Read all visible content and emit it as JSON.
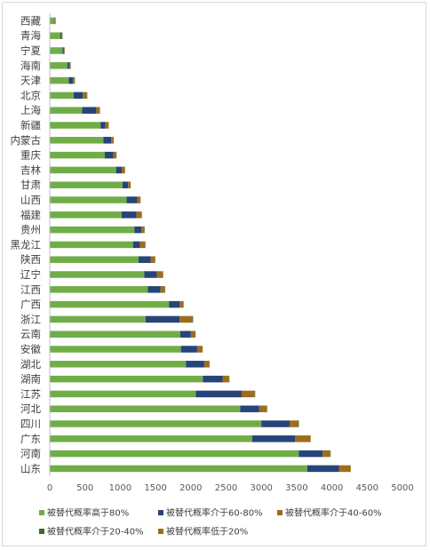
{
  "chart_data": {
    "type": "bar",
    "orientation": "horizontal",
    "stacked": true,
    "categories": [
      "西藏",
      "青海",
      "宁夏",
      "海南",
      "天津",
      "北京",
      "上海",
      "新疆",
      "内蒙古",
      "重庆",
      "吉林",
      "甘肃",
      "山西",
      "福建",
      "贵州",
      "黑龙江",
      "陕西",
      "辽宁",
      "江西",
      "广西",
      "浙江",
      "云南",
      "安徽",
      "湖北",
      "湖南",
      "江苏",
      "河北",
      "四川",
      "广东",
      "河南",
      "山东"
    ],
    "series": [
      {
        "name": "被替代概率高于80%",
        "color": "#70ad47",
        "values": [
          70,
          150,
          180,
          250,
          270,
          340,
          460,
          720,
          760,
          780,
          940,
          1030,
          1090,
          1020,
          1200,
          1180,
          1260,
          1340,
          1390,
          1690,
          1360,
          1850,
          1860,
          1930,
          2170,
          2070,
          2700,
          3000,
          2870,
          3530,
          3650
        ]
      },
      {
        "name": "被替代概率介于60-80%",
        "color": "#264478",
        "values": [
          5,
          15,
          15,
          25,
          60,
          130,
          200,
          70,
          110,
          120,
          80,
          80,
          150,
          210,
          100,
          100,
          170,
          180,
          180,
          150,
          480,
          150,
          230,
          260,
          280,
          650,
          270,
          400,
          610,
          340,
          450
        ]
      },
      {
        "name": "被替代概率介于40-60%",
        "color": "#9e6c1f",
        "values": [
          5,
          10,
          10,
          15,
          20,
          50,
          40,
          40,
          30,
          40,
          40,
          30,
          40,
          70,
          40,
          70,
          60,
          80,
          60,
          50,
          180,
          60,
          70,
          70,
          90,
          180,
          100,
          120,
          200,
          100,
          150
        ]
      },
      {
        "name": "被替代概率介于20-40%",
        "color": "#43682b",
        "values": [
          3,
          5,
          5,
          5,
          5,
          8,
          8,
          5,
          5,
          5,
          5,
          5,
          5,
          5,
          5,
          5,
          5,
          5,
          5,
          5,
          8,
          5,
          5,
          5,
          5,
          8,
          8,
          8,
          10,
          8,
          10
        ]
      },
      {
        "name": "被替代概率低于20%",
        "color": "#997300",
        "values": [
          2,
          3,
          3,
          3,
          3,
          5,
          5,
          3,
          3,
          3,
          3,
          3,
          3,
          3,
          3,
          3,
          3,
          3,
          3,
          3,
          5,
          3,
          3,
          3,
          3,
          5,
          5,
          5,
          8,
          5,
          8
        ]
      }
    ],
    "xlim": [
      0,
      5000
    ],
    "xticks": [
      "0",
      "500",
      "1000",
      "1500",
      "2000",
      "2500",
      "3000",
      "3500",
      "4000",
      "4500",
      "5000"
    ],
    "legend_position": "bottom",
    "grid": false
  }
}
